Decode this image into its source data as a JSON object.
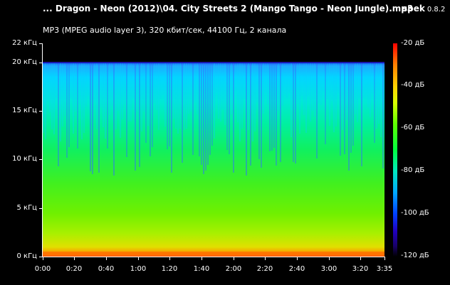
{
  "header": {
    "file_title": "... Dragon - Neon (2012)\\04. City Streets 2 (Mango Tango - Neon Jungle).mp3",
    "app_name": "spek",
    "app_version": "0.8.2",
    "info": "MP3 (MPEG audio layer 3), 320 кбит/сек, 44100 Гц, 2 канала"
  },
  "frequency_axis": {
    "labels": [
      "22 кГц",
      "20 кГц",
      "15 кГц",
      "10 кГц",
      "5 кГц",
      "0 кГц"
    ],
    "values_khz": [
      22,
      20,
      15,
      10,
      5,
      0
    ]
  },
  "time_axis": {
    "labels": [
      "0:00",
      "0:20",
      "0:40",
      "1:00",
      "1:20",
      "1:40",
      "2:00",
      "2:20",
      "2:40",
      "3:00",
      "3:20",
      "3:35"
    ],
    "values_sec": [
      0,
      20,
      40,
      60,
      80,
      100,
      120,
      140,
      160,
      180,
      200,
      215
    ]
  },
  "colorbar": {
    "labels": [
      "-20 дБ",
      "-40 дБ",
      "-60 дБ",
      "-80 дБ",
      "-100 дБ",
      "-120 дБ"
    ],
    "values_db": [
      -20,
      -40,
      -60,
      -80,
      -100,
      -120
    ]
  },
  "spectrogram": {
    "cutoff_khz": 20,
    "max_khz": 22,
    "duration_sec": 215
  },
  "colors": {
    "background": "#000000",
    "text": "#ffffff"
  }
}
